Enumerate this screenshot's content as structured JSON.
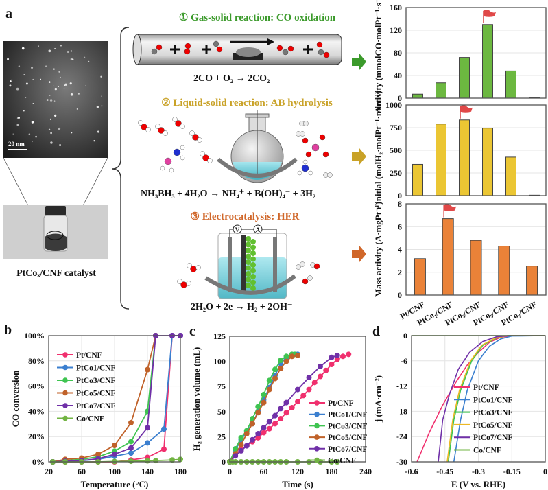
{
  "panel_labels": {
    "a": "a",
    "b": "b",
    "c": "c",
    "d": "d"
  },
  "panel_a": {
    "tem_scale_bar": "20 nm",
    "catalyst_label": "PtCoₓ/CNF catalyst",
    "sections": [
      {
        "title": "① Gas-solid reaction: CO oxidation",
        "equation": "2CO + O₂ → 2CO₂",
        "color": "#3b9a2b"
      },
      {
        "title": "② Liquid-solid reaction: AB hydrolysis",
        "equation": "NH₃BH₃ + 4H₂O → NH₄⁺ + B(OH)₄⁻ + 3H₂",
        "color": "#c9a227"
      },
      {
        "title": "③ Electrocatalysis: HER",
        "equation": "2H₂O + 2e → H₂ + 2OH⁻",
        "color": "#d0672a"
      }
    ],
    "cell_labels": {
      "voltmeter": "V",
      "ammeter": "A"
    }
  },
  "chart_data": [
    {
      "id": "a1",
      "type": "bar",
      "ylabel": "Activity (mmolCO·molPt⁻¹·s⁻¹)",
      "categories": [
        "Pt/CNF",
        "PtCo₁/CNF",
        "PtCo₃/CNF",
        "PtCo₅/CNF",
        "PtCo₇/CNF",
        "Co/CNF"
      ],
      "values": [
        7,
        27,
        72,
        130,
        48,
        1
      ],
      "ylim": [
        0,
        160
      ],
      "yticks": [
        0,
        40,
        80,
        120,
        160
      ],
      "color": "#6cb840",
      "flag_on": "PtCo₅/CNF",
      "grid": true,
      "show_xlabels": false
    },
    {
      "id": "a2",
      "type": "bar",
      "ylabel": "r initial (molH₂·molPt⁻¹·min⁻¹)",
      "categories": [
        "Pt/CNF",
        "PtCo₁/CNF",
        "PtCo₃/CNF",
        "PtCo₅/CNF",
        "PtCo₇/CNF",
        "Co/CNF"
      ],
      "values": [
        345,
        790,
        835,
        745,
        425,
        5
      ],
      "ylim": [
        0,
        1000
      ],
      "yticks": [
        0,
        250,
        500,
        750,
        1000
      ],
      "color": "#ebc633",
      "flag_on": "PtCo₃/CNF",
      "grid": true,
      "show_xlabels": false
    },
    {
      "id": "a3",
      "type": "bar",
      "ylabel": "Mass activity (A·mgPt⁻¹)",
      "categories": [
        "Pt/CNF",
        "PtCo₁/CNF",
        "PtCo₃/CNF",
        "PtCo₅/CNF",
        "PtCo₇/CNF"
      ],
      "values": [
        3.2,
        6.7,
        4.8,
        4.3,
        2.55
      ],
      "ylim": [
        0,
        8
      ],
      "yticks": [
        0,
        2,
        4,
        6,
        8
      ],
      "color": "#ea8238",
      "flag_on": "PtCo₁/CNF",
      "grid": true,
      "show_xlabels": true
    },
    {
      "id": "b",
      "type": "line",
      "markers": true,
      "xlabel": "Temperature (°C)",
      "ylabel": "CO conversion",
      "xlim": [
        20,
        180
      ],
      "xticks": [
        20,
        60,
        100,
        140,
        180
      ],
      "ylim": [
        0,
        100
      ],
      "yticks": [
        0,
        20,
        40,
        60,
        80,
        100
      ],
      "ytick_suffix": "%",
      "legend": "top-left",
      "grid": true,
      "series": [
        {
          "name": "Pt/CNF",
          "color": "#f0306e",
          "points": [
            [
              25,
              0
            ],
            [
              40,
              0
            ],
            [
              60,
              0
            ],
            [
              80,
              0
            ],
            [
              100,
              0
            ],
            [
              120,
              1.5
            ],
            [
              140,
              3.5
            ],
            [
              160,
              10
            ],
            [
              170,
              100
            ],
            [
              180,
              100
            ]
          ]
        },
        {
          "name": "PtCo1/CNF",
          "color": "#3b7fcf",
          "points": [
            [
              25,
              0
            ],
            [
              40,
              0.5
            ],
            [
              60,
              1
            ],
            [
              80,
              2
            ],
            [
              100,
              4.5
            ],
            [
              120,
              7
            ],
            [
              140,
              15
            ],
            [
              160,
              26
            ],
            [
              170,
              100
            ],
            [
              180,
              100
            ]
          ]
        },
        {
          "name": "PtCo3/CNF",
          "color": "#3fc451",
          "points": [
            [
              25,
              0
            ],
            [
              40,
              1
            ],
            [
              60,
              2
            ],
            [
              80,
              4
            ],
            [
              100,
              8.5
            ],
            [
              120,
              16
            ],
            [
              140,
              40
            ],
            [
              150,
              100
            ]
          ]
        },
        {
          "name": "PtCo5/CNF",
          "color": "#c0622a",
          "points": [
            [
              25,
              0
            ],
            [
              40,
              2
            ],
            [
              60,
              3
            ],
            [
              80,
              6
            ],
            [
              100,
              13
            ],
            [
              120,
              31
            ],
            [
              140,
              73
            ],
            [
              150,
              100
            ]
          ]
        },
        {
          "name": "PtCo7/CNF",
          "color": "#7030a8",
          "points": [
            [
              25,
              0
            ],
            [
              40,
              0.5
            ],
            [
              60,
              1
            ],
            [
              80,
              2.5
            ],
            [
              100,
              6
            ],
            [
              120,
              11
            ],
            [
              140,
              27
            ],
            [
              150,
              100
            ],
            [
              170,
              100
            ],
            [
              180,
              100
            ]
          ]
        },
        {
          "name": "Co/CNF",
          "color": "#72b443",
          "points": [
            [
              25,
              0
            ],
            [
              40,
              0
            ],
            [
              60,
              0
            ],
            [
              80,
              0
            ],
            [
              100,
              0.3
            ],
            [
              120,
              0.5
            ],
            [
              140,
              0.8
            ],
            [
              150,
              1
            ],
            [
              170,
              1.5
            ],
            [
              180,
              2
            ]
          ]
        }
      ]
    },
    {
      "id": "c",
      "type": "line",
      "markers": true,
      "xlabel": "Time (s)",
      "ylabel": "H₂ generation volume (mL)",
      "xlim": [
        0,
        240
      ],
      "xticks": [
        0,
        60,
        120,
        180,
        240
      ],
      "ylim": [
        0,
        125
      ],
      "yticks": [
        0,
        25,
        50,
        75,
        100,
        125
      ],
      "ytick_suffix": "",
      "legend": "right",
      "grid": false,
      "series": [
        {
          "name": "Pt/CNF",
          "color": "#f0306e",
          "points": [
            [
              0,
              0
            ],
            [
              10,
              8
            ],
            [
              20,
              12
            ],
            [
              30,
              16
            ],
            [
              40,
              20
            ],
            [
              50,
              24
            ],
            [
              60,
              29
            ],
            [
              70,
              33
            ],
            [
              80,
              38
            ],
            [
              90,
              43
            ],
            [
              100,
              49
            ],
            [
              110,
              54
            ],
            [
              120,
              60
            ],
            [
              130,
              66
            ],
            [
              140,
              72
            ],
            [
              150,
              79
            ],
            [
              160,
              85
            ],
            [
              170,
              91
            ],
            [
              180,
              97
            ],
            [
              190,
              102
            ],
            [
              200,
              105
            ],
            [
              210,
              107
            ]
          ]
        },
        {
          "name": "PtCo1/CNF",
          "color": "#3b7fcf",
          "points": [
            [
              0,
              0
            ],
            [
              10,
              12
            ],
            [
              20,
              22
            ],
            [
              30,
              30
            ],
            [
              40,
              38
            ],
            [
              50,
              50
            ],
            [
              60,
              62
            ],
            [
              70,
              74
            ],
            [
              80,
              86
            ],
            [
              90,
              98
            ],
            [
              100,
              104
            ],
            [
              110,
              106
            ],
            [
              120,
              107
            ]
          ]
        },
        {
          "name": "PtCo3/CNF",
          "color": "#3fc451",
          "points": [
            [
              0,
              0
            ],
            [
              10,
              13
            ],
            [
              20,
              24
            ],
            [
              30,
              31
            ],
            [
              40,
              43
            ],
            [
              50,
              55
            ],
            [
              60,
              67
            ],
            [
              70,
              81
            ],
            [
              80,
              92
            ],
            [
              90,
              101
            ],
            [
              100,
              105
            ],
            [
              110,
              107
            ],
            [
              115,
              107
            ]
          ]
        },
        {
          "name": "PtCo5/CNF",
          "color": "#c0622a",
          "points": [
            [
              0,
              0
            ],
            [
              10,
              8
            ],
            [
              20,
              17
            ],
            [
              30,
              28
            ],
            [
              40,
              38
            ],
            [
              50,
              49
            ],
            [
              60,
              59
            ],
            [
              70,
              72
            ],
            [
              80,
              83
            ],
            [
              90,
              93
            ],
            [
              100,
              100
            ],
            [
              110,
              105
            ],
            [
              120,
              106
            ]
          ]
        },
        {
          "name": "PtCo7/CNF",
          "color": "#7030a8",
          "points": [
            [
              0,
              0
            ],
            [
              10,
              6
            ],
            [
              20,
              11
            ],
            [
              30,
              16
            ],
            [
              40,
              22
            ],
            [
              50,
              28
            ],
            [
              60,
              34
            ],
            [
              70,
              40
            ],
            [
              80,
              46
            ],
            [
              90,
              53
            ],
            [
              100,
              59
            ],
            [
              120,
              72
            ],
            [
              140,
              84
            ],
            [
              160,
              95
            ],
            [
              180,
              104
            ],
            [
              190,
              106
            ]
          ]
        },
        {
          "name": "Co/CNF",
          "color": "#72b443",
          "points": [
            [
              0,
              0
            ],
            [
              5,
              0
            ],
            [
              10,
              0
            ],
            [
              20,
              0
            ],
            [
              30,
              0
            ],
            [
              40,
              0
            ],
            [
              50,
              0
            ],
            [
              60,
              0
            ],
            [
              70,
              0
            ],
            [
              80,
              0
            ],
            [
              90,
              0
            ],
            [
              100,
              0
            ],
            [
              120,
              0
            ],
            [
              140,
              0
            ],
            [
              160,
              0
            ],
            [
              180,
              0
            ],
            [
              190,
              0
            ]
          ]
        }
      ]
    },
    {
      "id": "d",
      "type": "line",
      "markers": false,
      "xlabel": "E (V vs. RHE)",
      "ylabel": "j (mA·cm⁻²)",
      "xlim": [
        -0.6,
        0
      ],
      "xticks": [
        -0.6,
        -0.45,
        -0.3,
        -0.15,
        0
      ],
      "ylim": [
        -30,
        0
      ],
      "yticks": [
        -30,
        -24,
        -18,
        -12,
        -6,
        0
      ],
      "ytick_suffix": "",
      "legend": "bottom-right",
      "grid": true,
      "series": [
        {
          "name": "Pt/CNF",
          "color": "#f0306e",
          "points": [
            [
              -0.575,
              -30
            ],
            [
              -0.52,
              -23
            ],
            [
              -0.46,
              -16.5
            ],
            [
              -0.4,
              -11
            ],
            [
              -0.35,
              -7
            ],
            [
              -0.3,
              -4
            ],
            [
              -0.25,
              -1.6
            ],
            [
              -0.2,
              -0.4
            ],
            [
              -0.15,
              0
            ],
            [
              0,
              0
            ]
          ]
        },
        {
          "name": "PtCo1/CNF",
          "color": "#3b7fcf",
          "points": [
            [
              -0.41,
              -30
            ],
            [
              -0.38,
              -20
            ],
            [
              -0.35,
              -13
            ],
            [
              -0.3,
              -6
            ],
            [
              -0.25,
              -2.5
            ],
            [
              -0.2,
              -0.8
            ],
            [
              -0.15,
              -0.1
            ],
            [
              0,
              0
            ]
          ]
        },
        {
          "name": "PtCo3/CNF",
          "color": "#3fc451",
          "points": [
            [
              -0.435,
              -30
            ],
            [
              -0.41,
              -20
            ],
            [
              -0.38,
              -13
            ],
            [
              -0.33,
              -6
            ],
            [
              -0.28,
              -2.3
            ],
            [
              -0.22,
              -0.6
            ],
            [
              -0.17,
              0
            ],
            [
              0,
              0
            ]
          ]
        },
        {
          "name": "PtCo5/CNF",
          "color": "#ecb824",
          "points": [
            [
              -0.44,
              -30
            ],
            [
              -0.415,
              -20
            ],
            [
              -0.385,
              -13
            ],
            [
              -0.335,
              -6
            ],
            [
              -0.285,
              -2.3
            ],
            [
              -0.225,
              -0.6
            ],
            [
              -0.17,
              0
            ],
            [
              0,
              0
            ]
          ]
        },
        {
          "name": "PtCo7/CNF",
          "color": "#7030a8",
          "points": [
            [
              -0.48,
              -30
            ],
            [
              -0.46,
              -20
            ],
            [
              -0.43,
              -14
            ],
            [
              -0.39,
              -8
            ],
            [
              -0.34,
              -4
            ],
            [
              -0.28,
              -1.4
            ],
            [
              -0.22,
              -0.3
            ],
            [
              -0.16,
              0
            ],
            [
              0,
              0
            ]
          ]
        },
        {
          "name": "Co/CNF",
          "color": "#72b443",
          "points": [
            [
              -0.6,
              0
            ],
            [
              0,
              0
            ]
          ]
        }
      ]
    }
  ]
}
